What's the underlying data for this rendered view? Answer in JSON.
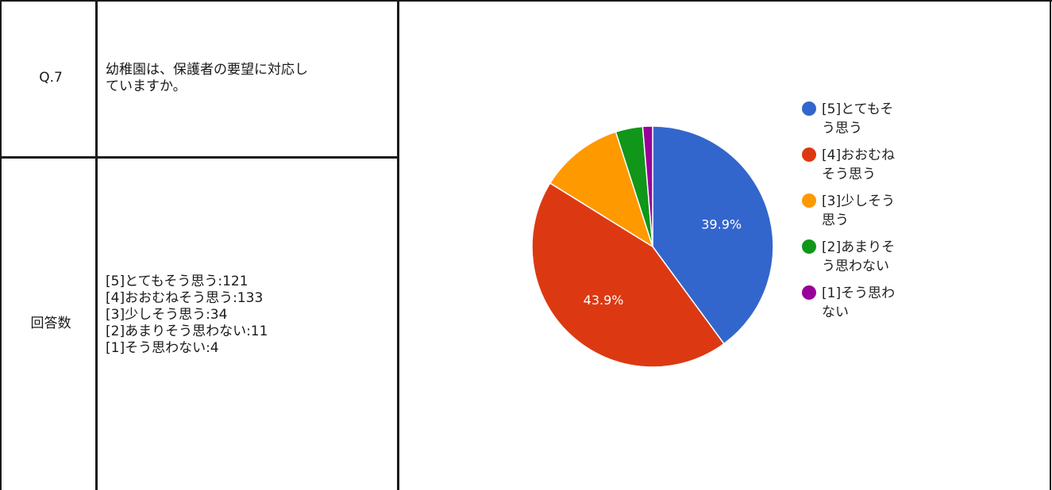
{
  "question": {
    "number": "Q.7",
    "text": "幼稚園は、保護者の要望に対応し\nていますか。"
  },
  "answers": {
    "label": "回答数",
    "items": [
      "[5]とてもそう思う:121",
      "[4]おおむねそう思う:133",
      "[3]少しそう思う:34",
      "[2]あまりそう思わない:11",
      "[1]そう思わない:4"
    ]
  },
  "chart_data": {
    "type": "pie",
    "categories": [
      "[5]とてもそう思う",
      "[4]おおむねそう思う",
      "[3]少しそう思う",
      "[2]あまりそう思わない",
      "[1]そう思わない"
    ],
    "values": [
      121,
      133,
      34,
      11,
      4
    ],
    "colors": [
      "#3366cc",
      "#dc3912",
      "#ff9900",
      "#109618",
      "#990099"
    ],
    "slice_labels": [
      "39.9%",
      "43.9%",
      "",
      "",
      ""
    ],
    "legend_position": "right",
    "legend_lines": [
      [
        "[5]とてもそ",
        "う思う"
      ],
      [
        "[4]おおむね",
        "そう思う"
      ],
      [
        "[3]少しそう",
        "思う"
      ],
      [
        "[2]あまりそ",
        "う思わない"
      ],
      [
        "[1]そう思わ",
        "ない"
      ]
    ]
  }
}
